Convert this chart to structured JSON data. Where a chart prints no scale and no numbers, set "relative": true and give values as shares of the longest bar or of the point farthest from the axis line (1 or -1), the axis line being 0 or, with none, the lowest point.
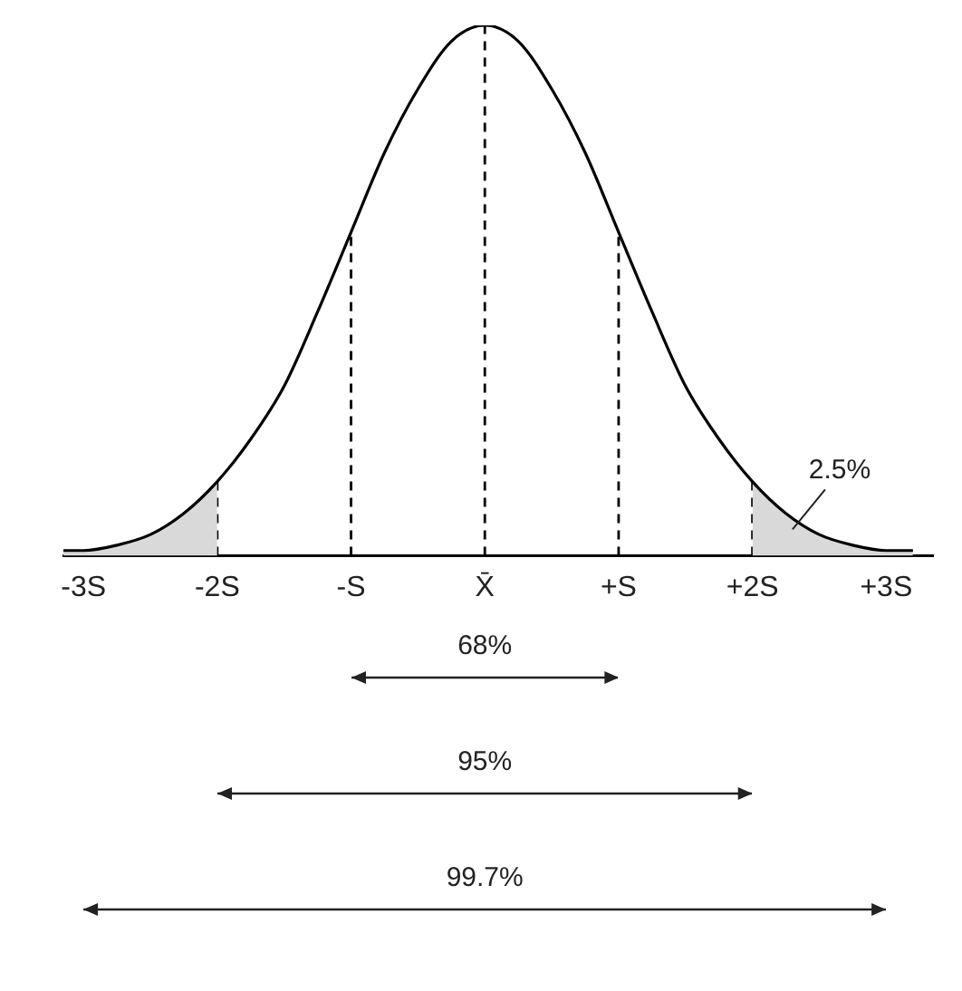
{
  "chart_data": {
    "type": "line",
    "relative": true,
    "marker": "none",
    "line_style": "solid",
    "grid": false,
    "legend": false,
    "x": [
      -3.15,
      -3,
      -2.75,
      -2.5,
      -2.25,
      -2,
      -1.75,
      -1.5,
      -1.25,
      -1,
      -0.75,
      -0.5,
      -0.25,
      0,
      0.25,
      0.5,
      0.75,
      1,
      1.25,
      1.5,
      1.75,
      2,
      2.25,
      2.5,
      2.75,
      3,
      3.2
    ],
    "series": [
      {
        "color": "#000000",
        "values": [
          0.01,
          0.01,
          0.02,
          0.04,
          0.08,
          0.14,
          0.22,
          0.32,
          0.46,
          0.61,
          0.76,
          0.88,
          0.97,
          1,
          0.97,
          0.88,
          0.76,
          0.61,
          0.46,
          0.32,
          0.22,
          0.14,
          0.08,
          0.04,
          0.02,
          0.01,
          0.01
        ]
      },
      {
        "type": "area",
        "color": "#d9d9d9",
        "x": [
          -3.15,
          -3,
          -2.75,
          -2.5,
          -2.25,
          -2
        ],
        "values": [
          0.01,
          0.01,
          0.02,
          0.04,
          0.08,
          0.14
        ]
      },
      {
        "type": "area",
        "color": "#d9d9d9",
        "x": [
          2,
          2.25,
          2.5,
          2.75,
          3,
          3.2
        ],
        "values": [
          0.14,
          0.08,
          0.04,
          0.02,
          0.01,
          0.01
        ]
      }
    ],
    "xlim": [
      -3.15,
      3.35
    ],
    "xticks": [
      {
        "value": -3,
        "label": "-3S"
      },
      {
        "value": -2,
        "label": "-2S"
      },
      {
        "value": -1,
        "label": "-S"
      },
      {
        "value": 0,
        "label": "X̄"
      },
      {
        "value": 1,
        "label": "+S"
      },
      {
        "value": 2,
        "label": "+2S"
      },
      {
        "value": 3,
        "label": "+3S"
      }
    ],
    "ref_lines": [
      {
        "axis": "x",
        "value": -2,
        "line_style": "dashed"
      },
      {
        "axis": "x",
        "value": -1,
        "line_style": "dashed"
      },
      {
        "axis": "x",
        "value": 0,
        "line_style": "dashed"
      },
      {
        "axis": "x",
        "value": 1,
        "line_style": "dashed"
      },
      {
        "axis": "x",
        "value": 2,
        "line_style": "dashed"
      }
    ],
    "annotations": [
      {
        "text": "2.5%",
        "x": 2.3,
        "y": 0.05
      },
      "68%",
      "95%",
      "99.7%"
    ]
  }
}
